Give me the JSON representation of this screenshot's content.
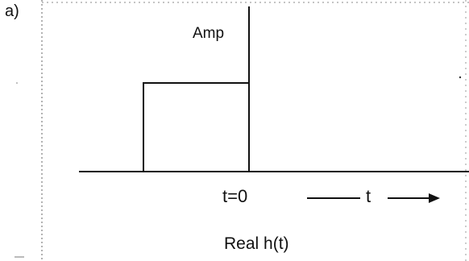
{
  "panel": {
    "label": "a)"
  },
  "axis": {
    "y_label": "Amp",
    "origin_label": "t=0",
    "x_label": "t"
  },
  "caption": "Real h(t)",
  "pulse": {
    "start_t": -1,
    "end_t": 0,
    "amplitude": 1
  },
  "colors": {
    "line": "#111111",
    "dotted": "#555555"
  }
}
